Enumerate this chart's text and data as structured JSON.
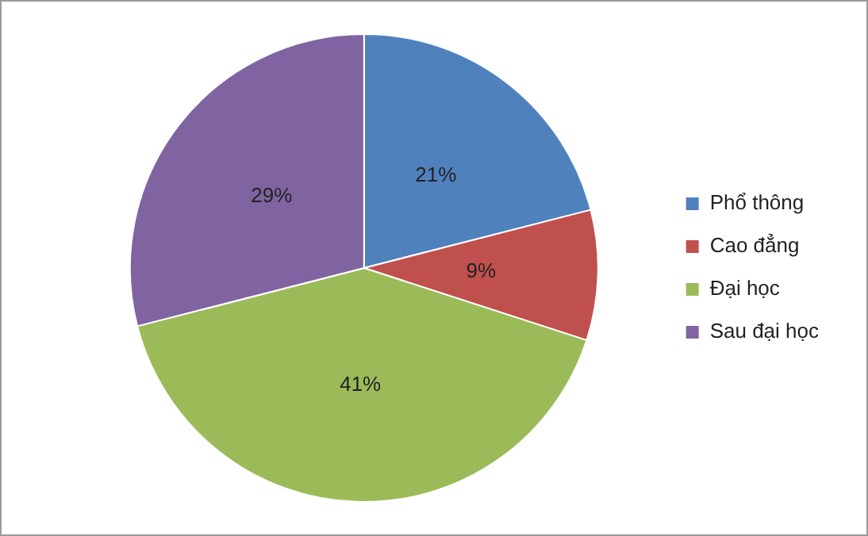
{
  "chart_data": {
    "type": "pie",
    "categories": [
      "Phổ thông",
      "Cao đẳng",
      "Đại học",
      "Sau đại học"
    ],
    "values": [
      21,
      9,
      41,
      29
    ],
    "colors": [
      "#4f81bd",
      "#c0504d",
      "#9bbb59",
      "#8064a2"
    ],
    "value_labels": [
      "21%",
      "9%",
      "41%",
      "29%"
    ],
    "legend": "right"
  }
}
